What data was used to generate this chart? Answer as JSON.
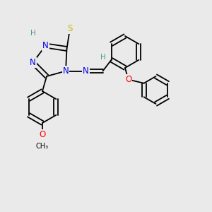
{
  "background_color": "#eaeaea",
  "atom_colors": {
    "C": "#000000",
    "N": "#0000ee",
    "S": "#bbbb00",
    "O": "#ff0000",
    "H": "#4a9a8a"
  },
  "bond_color": "#000000",
  "bond_lw": 1.3,
  "font_size_atoms": 8.5,
  "font_size_H": 7.5,
  "font_size_small": 7.0
}
